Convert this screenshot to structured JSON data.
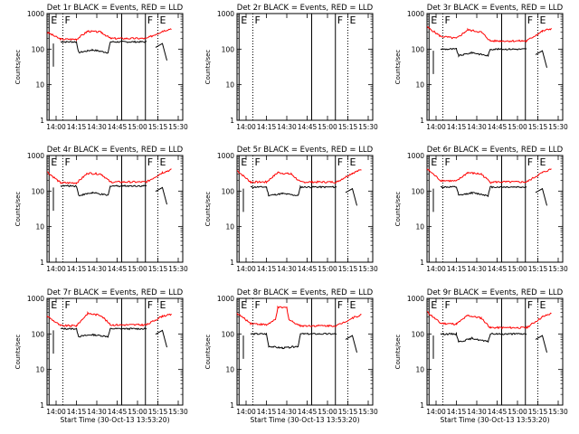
{
  "chart_data": {
    "common": {
      "type": "line",
      "scale": "log",
      "ylabel": "Counts/sec",
      "xlabel": "Start Time (30-Oct-13 13:53:20)",
      "ylim": [
        1,
        1000
      ],
      "y_ticks": [
        1,
        10,
        100,
        1000
      ],
      "y_tick_labels": [
        "1",
        "10",
        "100",
        "1000"
      ],
      "xlim_seconds": [
        0,
        6000
      ],
      "x_tick_seconds": [
        400,
        1300,
        2200,
        3100,
        4000,
        4900,
        5800
      ],
      "x_tick_labels": [
        "14:00",
        "14:15",
        "14:30",
        "14:45",
        "15:00",
        "15:15",
        "15:30"
      ],
      "series": [
        {
          "name": "Events",
          "color": "#000000"
        },
        {
          "name": "LLD",
          "color": "#ff0000"
        }
      ],
      "markers": [
        {
          "label": "E",
          "x": 90,
          "style": "solid"
        },
        {
          "label": "F",
          "x": 700,
          "style": "dotted"
        },
        {
          "label": "",
          "x": 3300,
          "style": "solid"
        },
        {
          "label": "F",
          "x": 4350,
          "style": "solid"
        },
        {
          "label": "E",
          "x": 4900,
          "style": "dotted"
        }
      ]
    },
    "panels": [
      {
        "title": "Det 1r BLACK = Events, RED = LLD",
        "show_xlabel": false,
        "has_data": true,
        "events": [
          [
            600,
            160
          ],
          [
            1300,
            160
          ],
          [
            1400,
            80
          ],
          [
            2000,
            95
          ],
          [
            2700,
            80
          ],
          [
            2800,
            160
          ],
          [
            4400,
            160
          ]
        ],
        "lld": [
          [
            0,
            300
          ],
          [
            600,
            190
          ],
          [
            1300,
            190
          ],
          [
            1800,
            320
          ],
          [
            2400,
            300
          ],
          [
            2800,
            200
          ],
          [
            4400,
            200
          ],
          [
            5100,
            320
          ],
          [
            5500,
            380
          ]
        ]
      },
      {
        "title": "Det 2r BLACK = Events, RED = LLD",
        "show_xlabel": false,
        "has_data": false,
        "events": [],
        "lld": []
      },
      {
        "title": "Det 3r BLACK = Events, RED = LLD",
        "show_xlabel": false,
        "has_data": true,
        "events": [
          [
            600,
            100
          ],
          [
            1300,
            100
          ],
          [
            1400,
            65
          ],
          [
            2000,
            80
          ],
          [
            2700,
            65
          ],
          [
            2800,
            100
          ],
          [
            4400,
            100
          ]
        ],
        "lld": [
          [
            0,
            420
          ],
          [
            600,
            230
          ],
          [
            1300,
            200
          ],
          [
            1800,
            350
          ],
          [
            2400,
            300
          ],
          [
            2800,
            170
          ],
          [
            4400,
            170
          ],
          [
            5100,
            320
          ],
          [
            5500,
            380
          ]
        ]
      },
      {
        "title": "Det 4r BLACK = Events, RED = LLD",
        "show_xlabel": false,
        "has_data": true,
        "events": [
          [
            600,
            140
          ],
          [
            1300,
            140
          ],
          [
            1400,
            75
          ],
          [
            2000,
            90
          ],
          [
            2700,
            75
          ],
          [
            2800,
            140
          ],
          [
            4400,
            140
          ]
        ],
        "lld": [
          [
            0,
            350
          ],
          [
            600,
            170
          ],
          [
            1300,
            170
          ],
          [
            1800,
            320
          ],
          [
            2400,
            300
          ],
          [
            2800,
            180
          ],
          [
            4400,
            180
          ],
          [
            5100,
            330
          ],
          [
            5500,
            400
          ]
        ]
      },
      {
        "title": "Det 5r BLACK = Events, RED = LLD",
        "show_xlabel": false,
        "has_data": true,
        "events": [
          [
            600,
            130
          ],
          [
            1300,
            130
          ],
          [
            1400,
            75
          ],
          [
            2000,
            85
          ],
          [
            2700,
            75
          ],
          [
            2800,
            130
          ],
          [
            4400,
            130
          ]
        ],
        "lld": [
          [
            0,
            380
          ],
          [
            600,
            180
          ],
          [
            1300,
            180
          ],
          [
            1800,
            330
          ],
          [
            2400,
            300
          ],
          [
            2800,
            180
          ],
          [
            4400,
            180
          ],
          [
            5100,
            320
          ],
          [
            5500,
            400
          ]
        ]
      },
      {
        "title": "Det 6r BLACK = Events, RED = LLD",
        "show_xlabel": false,
        "has_data": true,
        "events": [
          [
            600,
            130
          ],
          [
            1300,
            130
          ],
          [
            1400,
            75
          ],
          [
            2000,
            90
          ],
          [
            2700,
            75
          ],
          [
            2800,
            130
          ],
          [
            4400,
            130
          ]
        ],
        "lld": [
          [
            0,
            420
          ],
          [
            600,
            200
          ],
          [
            1300,
            190
          ],
          [
            1800,
            330
          ],
          [
            2400,
            300
          ],
          [
            2800,
            180
          ],
          [
            4400,
            180
          ],
          [
            5100,
            330
          ],
          [
            5500,
            420
          ]
        ]
      },
      {
        "title": "Det 7r BLACK = Events, RED = LLD",
        "show_xlabel": true,
        "has_data": true,
        "events": [
          [
            600,
            140
          ],
          [
            1300,
            140
          ],
          [
            1400,
            85
          ],
          [
            2000,
            95
          ],
          [
            2700,
            85
          ],
          [
            2800,
            140
          ],
          [
            4400,
            140
          ]
        ],
        "lld": [
          [
            0,
            320
          ],
          [
            600,
            170
          ],
          [
            1300,
            170
          ],
          [
            1800,
            380
          ],
          [
            2400,
            330
          ],
          [
            2800,
            180
          ],
          [
            4400,
            180
          ],
          [
            5100,
            320
          ],
          [
            5500,
            350
          ]
        ]
      },
      {
        "title": "Det 8r BLACK = Events, RED = LLD",
        "show_xlabel": true,
        "has_data": true,
        "events": [
          [
            600,
            100
          ],
          [
            1300,
            100
          ],
          [
            1400,
            45
          ],
          [
            2000,
            40
          ],
          [
            2700,
            45
          ],
          [
            2800,
            100
          ],
          [
            4400,
            100
          ]
        ],
        "lld": [
          [
            0,
            380
          ],
          [
            600,
            200
          ],
          [
            1300,
            180
          ],
          [
            1700,
            250
          ],
          [
            1800,
            550
          ],
          [
            2200,
            550
          ],
          [
            2300,
            250
          ],
          [
            2800,
            170
          ],
          [
            4400,
            170
          ],
          [
            5100,
            280
          ],
          [
            5500,
            350
          ]
        ]
      },
      {
        "title": "Det 9r BLACK = Events, RED = LLD",
        "show_xlabel": true,
        "has_data": true,
        "events": [
          [
            600,
            100
          ],
          [
            1300,
            100
          ],
          [
            1400,
            60
          ],
          [
            2000,
            75
          ],
          [
            2700,
            60
          ],
          [
            2800,
            100
          ],
          [
            4400,
            100
          ]
        ],
        "lld": [
          [
            0,
            420
          ],
          [
            600,
            200
          ],
          [
            1300,
            190
          ],
          [
            1800,
            330
          ],
          [
            2400,
            280
          ],
          [
            2800,
            150
          ],
          [
            4400,
            150
          ],
          [
            5100,
            300
          ],
          [
            5500,
            380
          ]
        ]
      }
    ]
  }
}
